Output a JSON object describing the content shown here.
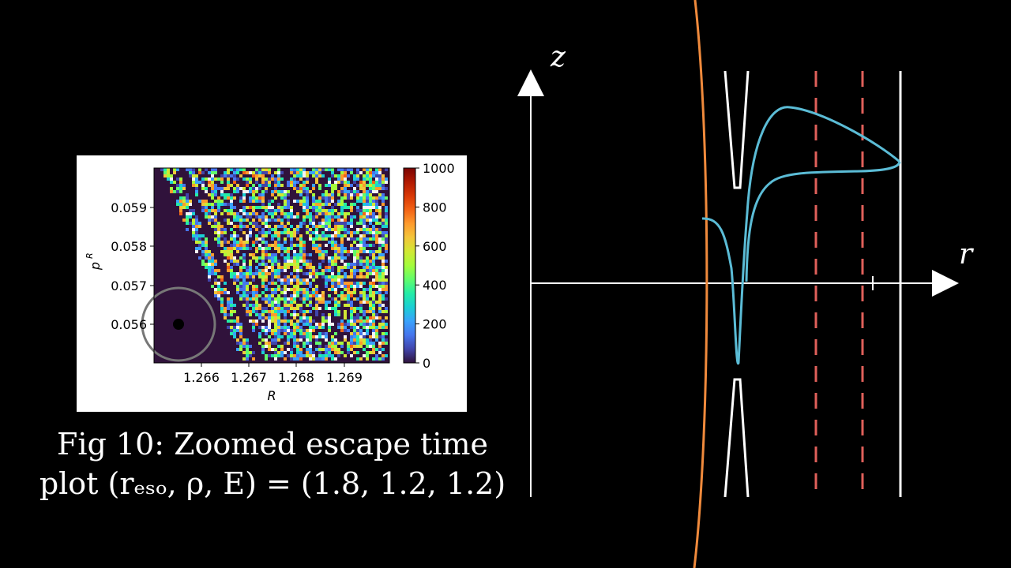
{
  "escape_plot": {
    "x_label": "R",
    "y_label": "p",
    "y_label_sup": "R",
    "x_ticks": [
      "1.266",
      "1.267",
      "1.268",
      "1.269"
    ],
    "y_ticks": [
      "0.059",
      "0.058",
      "0.057",
      "0.056"
    ],
    "colorbar_ticks": [
      "1000",
      "800",
      "600",
      "400",
      "200",
      "0"
    ],
    "colorbar_range": [
      0,
      1000
    ],
    "colormap": [
      "#30123b",
      "#4145ab",
      "#4675ed",
      "#39a2fc",
      "#1bcfd4",
      "#24eca6",
      "#61fc6c",
      "#a4fc3b",
      "#d1e834",
      "#f3c63a",
      "#fe9b2d",
      "#f36315",
      "#d93806",
      "#b11901",
      "#7a0403"
    ],
    "background_color": "#30123b"
  },
  "caption": {
    "line1": "Fig 10: Zoomed escape time",
    "line2": "plot (rₑₛₒ, ρ, E) = (1.8, 1.2, 1.2)"
  },
  "diagram": {
    "z_label": "z",
    "r_label": "r",
    "colors": {
      "axis": "#ffffff",
      "orange_curve": "#f08a3c",
      "trajectory": "#5bbcd6",
      "dashed": "#e0605a",
      "boundary": "#ffffff"
    }
  }
}
